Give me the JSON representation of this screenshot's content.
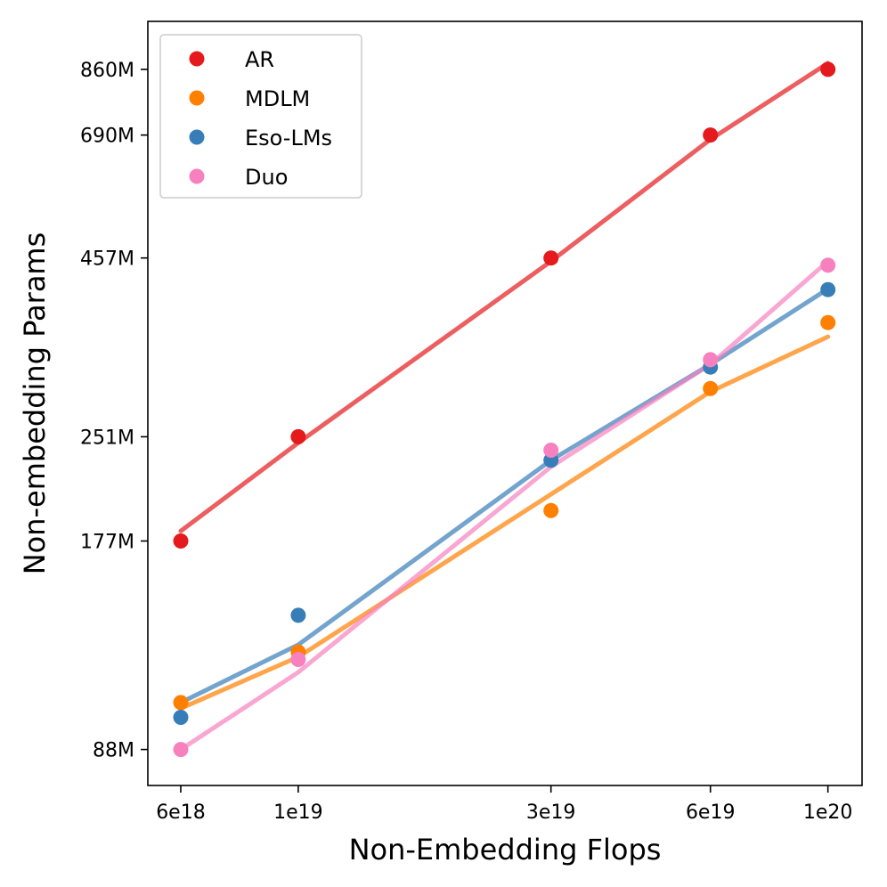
{
  "chart_data": {
    "type": "scatter",
    "xscale": "log",
    "yscale": "log",
    "xlabel": "Non-Embedding Flops",
    "ylabel": "Non-embedding Params",
    "xlim": [
      5.2e+18,
      1.16e+20
    ],
    "ylim": [
      78,
      1010
    ],
    "xticks": [
      6e+18,
      1e+19,
      3e+19,
      6e+19,
      1e+20
    ],
    "xtick_labels": [
      "6e18",
      "1e19",
      "3e19",
      "6e19",
      "1e20"
    ],
    "yticks": [
      88,
      177,
      251,
      457,
      690,
      860
    ],
    "ytick_labels": [
      "88M",
      "177M",
      "251M",
      "457M",
      "690M",
      "860M"
    ],
    "grid": false,
    "legend_position": "top-left",
    "x": [
      6e+18,
      1e+19,
      3e+19,
      6e+19,
      1e+20
    ],
    "series": [
      {
        "name": "AR",
        "color": "#e41a1c",
        "values": [
          177,
          251,
          457,
          690,
          860
        ],
        "fit": [
          183,
          246,
          452,
          680,
          878
        ]
      },
      {
        "name": "MDLM",
        "color": "#ff7f00",
        "values": [
          103,
          122,
          196,
          295,
          368
        ],
        "fit": [
          101,
          120,
          207,
          292,
          351
        ]
      },
      {
        "name": "Eso-LMs",
        "color": "#377eb8",
        "values": [
          98,
          138,
          232,
          317,
          411
        ],
        "fit": [
          103,
          125,
          232,
          320,
          412
        ]
      },
      {
        "name": "Duo",
        "color": "#f781bf",
        "values": [
          88,
          119,
          240,
          325,
          446
        ],
        "fit": [
          88,
          114,
          227,
          320,
          452
        ]
      }
    ]
  }
}
